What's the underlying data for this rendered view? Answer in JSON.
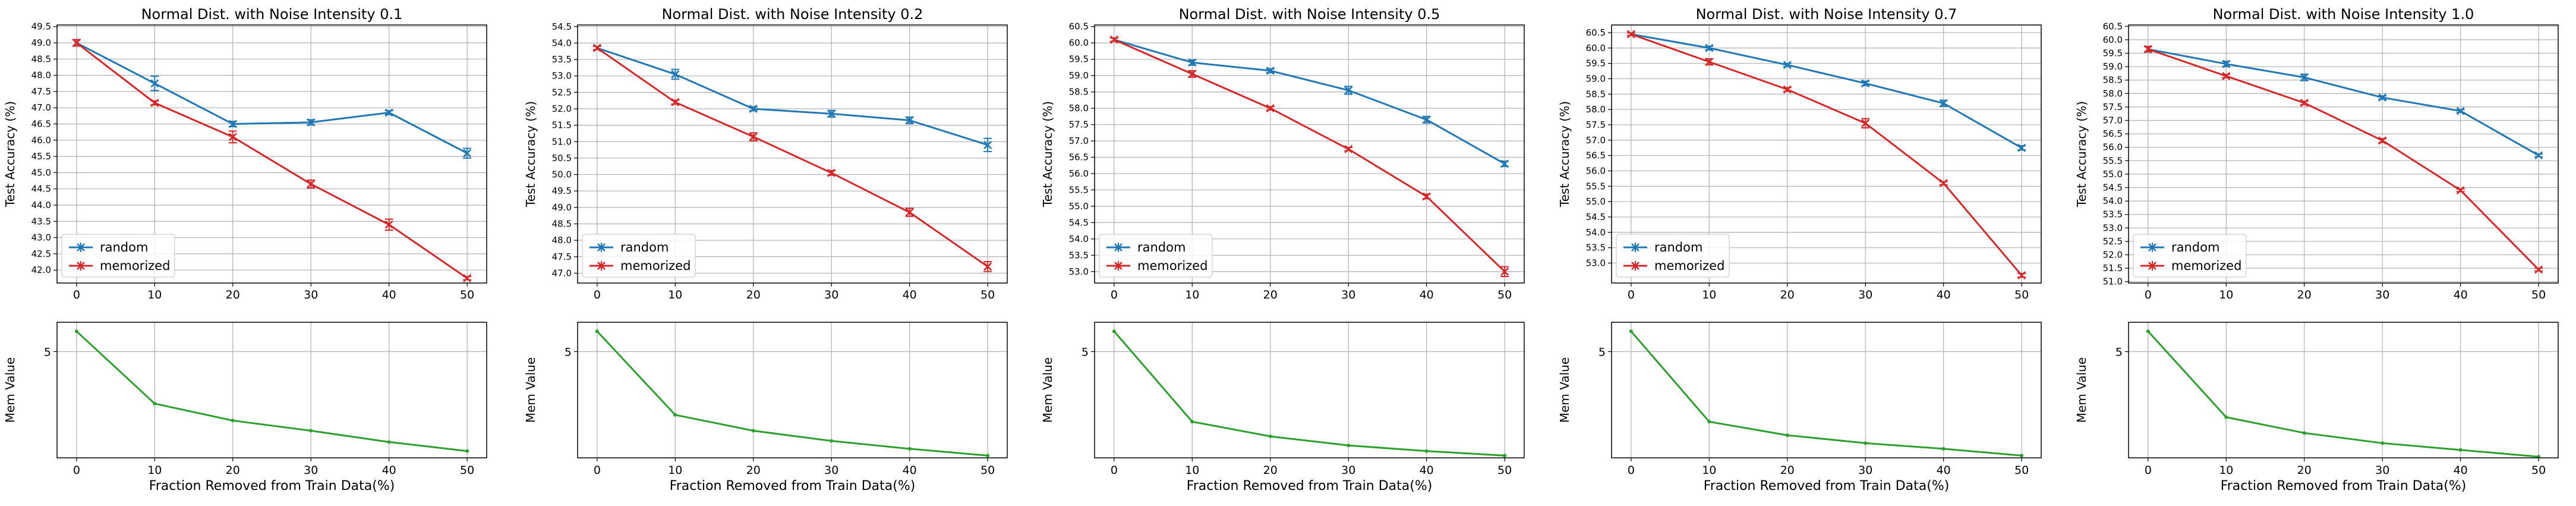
{
  "colors": {
    "random": "#1f77b4",
    "memorized": "#d62728",
    "mem": "#2ca02c",
    "grid": "#b0b0b0",
    "axis": "#000000"
  },
  "labels": {
    "top_ylabel": "Test Accuracy (%)",
    "bottom_ylabel": "Mem Value",
    "xlabel": "Fraction Removed from Train Data(%)",
    "legend_random": "random",
    "legend_memorized": "memorized"
  },
  "chart_data": [
    {
      "type": "line",
      "title": "Normal Dist. with Noise Intensity 0.1",
      "x": [
        0,
        10,
        20,
        30,
        40,
        50
      ],
      "xticks": [
        0,
        10,
        20,
        30,
        40,
        50
      ],
      "ylim": [
        41.6,
        49.55
      ],
      "yticks": [
        "42.0",
        "42.5",
        "43.0",
        "43.5",
        "44.0",
        "44.5",
        "45.0",
        "45.5",
        "46.0",
        "46.5",
        "47.0",
        "47.5",
        "48.0",
        "48.5",
        "49.0",
        "49.5"
      ],
      "series": [
        {
          "name": "random",
          "marker": "x",
          "values": [
            49.0,
            47.75,
            46.5,
            46.55,
            46.85,
            45.6
          ],
          "err": [
            0.1,
            0.22,
            0.08,
            0.08,
            0.06,
            0.15
          ]
        },
        {
          "name": "memorized",
          "marker": "x",
          "values": [
            49.0,
            47.15,
            46.1,
            44.65,
            43.4,
            41.75
          ],
          "err": [
            0.1,
            0.06,
            0.18,
            0.12,
            0.17,
            0.05
          ]
        }
      ],
      "mem": {
        "ylabel": "Mem Value",
        "ytick": "5",
        "ylim": [
          0.3,
          6.3
        ],
        "values": [
          5.9,
          2.7,
          1.95,
          1.5,
          1.0,
          0.6
        ]
      }
    },
    {
      "type": "line",
      "title": "Normal Dist. with Noise Intensity 0.2",
      "x": [
        0,
        10,
        20,
        30,
        40,
        50
      ],
      "xticks": [
        0,
        10,
        20,
        30,
        40,
        50
      ],
      "ylim": [
        46.7,
        54.55
      ],
      "yticks": [
        "47.0",
        "47.5",
        "48.0",
        "48.5",
        "49.0",
        "49.5",
        "50.0",
        "50.5",
        "51.0",
        "51.5",
        "52.0",
        "52.5",
        "53.0",
        "53.5",
        "54.0",
        "54.5"
      ],
      "series": [
        {
          "name": "random",
          "marker": "x",
          "values": [
            53.85,
            53.05,
            52.0,
            51.85,
            51.65,
            50.9
          ],
          "err": [
            0.05,
            0.15,
            0.06,
            0.1,
            0.1,
            0.2
          ]
        },
        {
          "name": "memorized",
          "marker": "x",
          "values": [
            53.85,
            52.2,
            51.15,
            50.05,
            48.85,
            47.2
          ],
          "err": [
            0.05,
            0.06,
            0.12,
            0.07,
            0.12,
            0.15
          ]
        }
      ],
      "mem": {
        "ylabel": "Mem Value",
        "ytick": "5",
        "ylim": [
          0.3,
          6.3
        ],
        "values": [
          5.9,
          2.2,
          1.5,
          1.05,
          0.7,
          0.4
        ]
      }
    },
    {
      "type": "line",
      "title": "Normal Dist. with Noise Intensity 0.5",
      "x": [
        0,
        10,
        20,
        30,
        40,
        50
      ],
      "xticks": [
        0,
        10,
        20,
        30,
        40,
        50
      ],
      "ylim": [
        52.65,
        60.55
      ],
      "yticks": [
        "53.0",
        "53.5",
        "54.0",
        "54.5",
        "55.0",
        "55.5",
        "56.0",
        "56.5",
        "57.0",
        "57.5",
        "58.0",
        "58.5",
        "59.0",
        "59.5",
        "60.0",
        "60.5"
      ],
      "series": [
        {
          "name": "random",
          "marker": "x",
          "values": [
            60.1,
            59.4,
            59.15,
            58.55,
            57.65,
            56.3
          ],
          "err": [
            0.05,
            0.08,
            0.06,
            0.12,
            0.1,
            0.08
          ]
        },
        {
          "name": "memorized",
          "marker": "x",
          "values": [
            60.1,
            59.05,
            58.0,
            56.75,
            55.3,
            53.0
          ],
          "err": [
            0.05,
            0.1,
            0.05,
            0.05,
            0.07,
            0.15
          ]
        }
      ],
      "mem": {
        "ylabel": "Mem Value",
        "ytick": "5",
        "ylim": [
          0.3,
          6.3
        ],
        "values": [
          5.9,
          1.9,
          1.25,
          0.85,
          0.6,
          0.4
        ]
      }
    },
    {
      "type": "line",
      "title": "Normal Dist. with Noise Intensity 0.7",
      "x": [
        0,
        10,
        20,
        30,
        40,
        50
      ],
      "xticks": [
        0,
        10,
        20,
        30,
        40,
        50
      ],
      "ylim": [
        52.35,
        60.75
      ],
      "yticks": [
        "53.0",
        "53.5",
        "54.0",
        "54.5",
        "55.0",
        "55.5",
        "56.0",
        "56.5",
        "57.0",
        "57.5",
        "58.0",
        "58.5",
        "59.0",
        "59.5",
        "60.0",
        "60.5"
      ],
      "series": [
        {
          "name": "random",
          "marker": "x",
          "values": [
            60.45,
            60.0,
            59.45,
            58.85,
            58.2,
            56.75
          ],
          "err": [
            0.04,
            0.06,
            0.05,
            0.07,
            0.1,
            0.07
          ]
        },
        {
          "name": "memorized",
          "marker": "x",
          "values": [
            60.45,
            59.55,
            58.65,
            57.55,
            55.6,
            52.6
          ],
          "err": [
            0.04,
            0.1,
            0.06,
            0.15,
            0.05,
            0.06
          ]
        }
      ],
      "mem": {
        "ylabel": "Mem Value",
        "ytick": "5",
        "ylim": [
          0.3,
          6.3
        ],
        "values": [
          5.9,
          1.9,
          1.3,
          0.95,
          0.7,
          0.4
        ]
      }
    },
    {
      "type": "line",
      "title": "Normal Dist. with Noise Intensity 1.0",
      "x": [
        0,
        10,
        20,
        30,
        40,
        50
      ],
      "xticks": [
        0,
        10,
        20,
        30,
        40,
        50
      ],
      "ylim": [
        50.95,
        60.55
      ],
      "yticks": [
        "51.0",
        "51.5",
        "52.0",
        "52.5",
        "53.0",
        "53.5",
        "54.0",
        "54.5",
        "55.0",
        "55.5",
        "56.0",
        "56.5",
        "57.0",
        "57.5",
        "58.0",
        "58.5",
        "59.0",
        "59.5",
        "60.0",
        "60.5"
      ],
      "series": [
        {
          "name": "random",
          "marker": "x",
          "values": [
            59.65,
            59.1,
            58.6,
            57.85,
            57.35,
            55.7
          ],
          "err": [
            0.1,
            0.1,
            0.12,
            0.06,
            0.05,
            0.05
          ]
        },
        {
          "name": "memorized",
          "marker": "x",
          "values": [
            59.65,
            58.65,
            57.65,
            56.25,
            54.4,
            51.45
          ],
          "err": [
            0.1,
            0.06,
            0.06,
            0.07,
            0.05,
            0.05
          ]
        }
      ],
      "mem": {
        "ylabel": "Mem Value",
        "ytick": "5",
        "ylim": [
          0.3,
          6.3
        ],
        "values": [
          5.9,
          2.1,
          1.4,
          0.95,
          0.65,
          0.35
        ]
      }
    }
  ]
}
